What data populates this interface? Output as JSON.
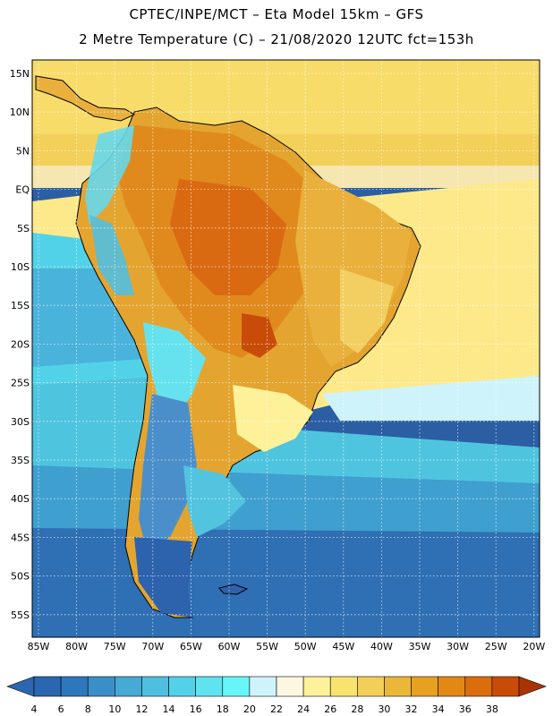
{
  "title_line1": "CPTEC/INPE/MCT –  Eta Model 15km – GFS",
  "title_line2": "2 Metre Temperature (C) – 21/08/2020 12UTC fct=153h",
  "lat_labels": [
    "15N",
    "10N",
    "5N",
    "EQ",
    "5S",
    "10S",
    "15S",
    "20S",
    "25S",
    "30S",
    "35S",
    "40S",
    "45S",
    "50S",
    "55S"
  ],
  "lon_labels": [
    "85W",
    "80W",
    "75W",
    "70W",
    "65W",
    "60W",
    "55W",
    "50W",
    "45W",
    "40W",
    "35W",
    "30W",
    "25W",
    "20W"
  ],
  "colorbar": {
    "labels": [
      "4",
      "6",
      "8",
      "10",
      "12",
      "14",
      "16",
      "18",
      "20",
      "22",
      "24",
      "26",
      "28",
      "30",
      "32",
      "34",
      "36",
      "38"
    ],
    "colors": [
      "#2a67b0",
      "#2d78bd",
      "#3a8fc9",
      "#46a9d6",
      "#4fbfdf",
      "#52d2e8",
      "#5ee3ef",
      "#66f6f8",
      "#cff3fb",
      "#fdf6e2",
      "#fdf19a",
      "#f8e36e",
      "#f2cf56",
      "#ebb739",
      "#e7a021",
      "#e38815",
      "#dc6d0c",
      "#c84c07",
      "#a83500"
    ]
  }
}
